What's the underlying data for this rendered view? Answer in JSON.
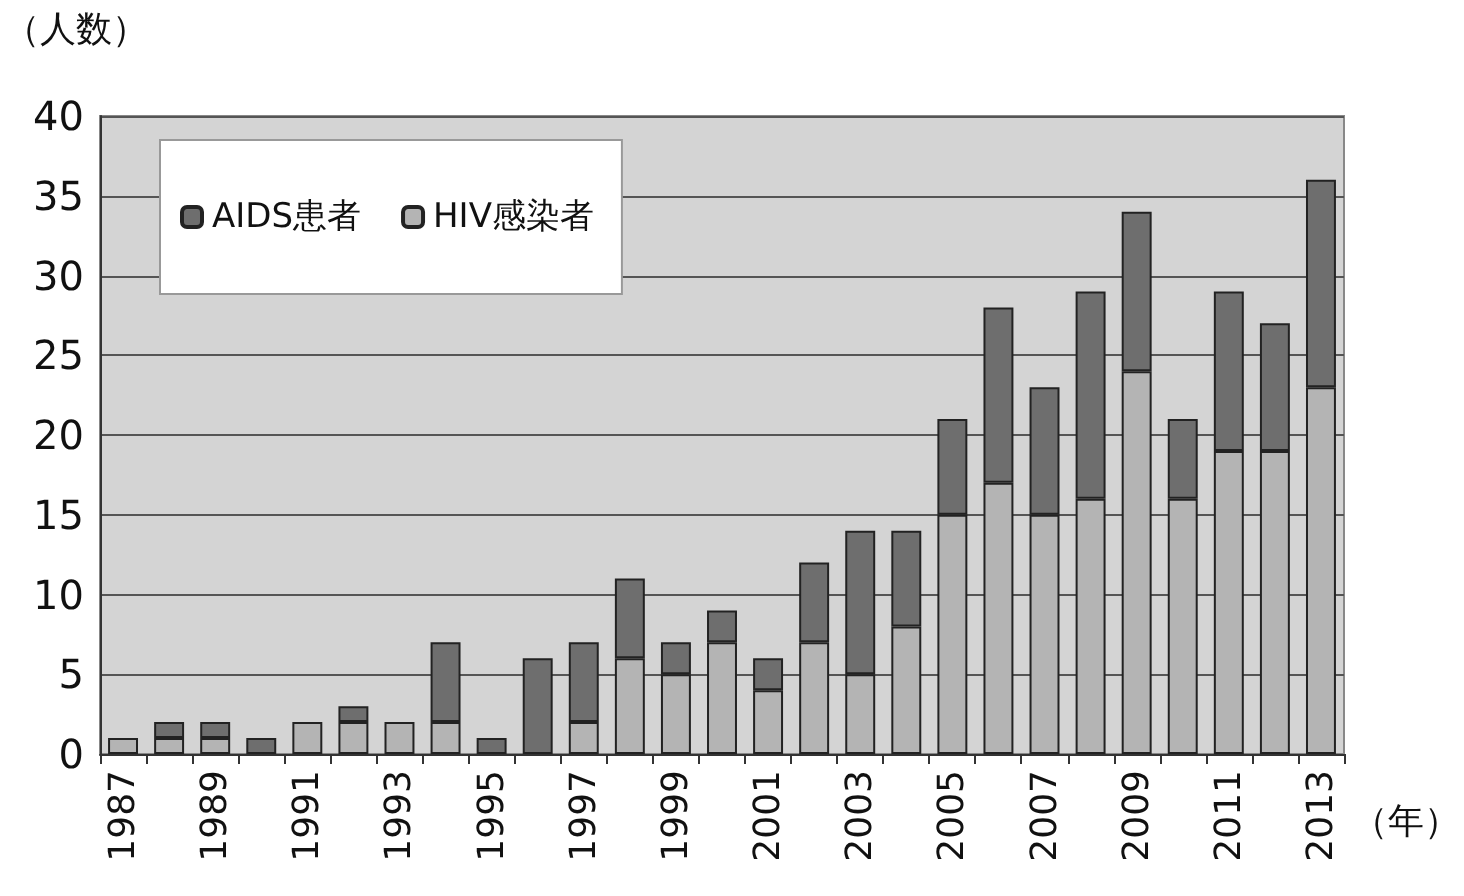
{
  "chart_data": {
    "type": "bar",
    "stacked": true,
    "ylabel": "（人数）",
    "xlabel": "（年）",
    "categories": [
      "1987",
      null,
      "1989",
      null,
      "1991",
      null,
      "1993",
      null,
      "1995",
      null,
      "1997",
      null,
      "1999",
      null,
      "2001",
      null,
      "2003",
      null,
      "2005",
      null,
      "2007",
      null,
      "2009",
      null,
      "2011",
      null,
      "2013"
    ],
    "series": [
      {
        "name": "HIV感染者",
        "color": "#b4b4b4",
        "values": [
          1,
          1,
          1,
          0,
          2,
          2,
          2,
          2,
          0,
          0,
          2,
          6,
          5,
          7,
          4,
          7,
          5,
          8,
          15,
          17,
          15,
          16,
          24,
          16,
          19,
          19,
          23
        ]
      },
      {
        "name": "AIDS患者",
        "color": "#6e6e6e",
        "values": [
          0,
          1,
          1,
          1,
          0,
          1,
          0,
          5,
          1,
          6,
          5,
          5,
          2,
          2,
          2,
          5,
          9,
          6,
          6,
          11,
          8,
          13,
          10,
          5,
          10,
          8,
          13
        ]
      }
    ],
    "ylim": [
      0,
      40
    ],
    "yticks": [
      0,
      5,
      10,
      15,
      20,
      25,
      30,
      35,
      40
    ],
    "grid": "y",
    "legend": "top left"
  }
}
